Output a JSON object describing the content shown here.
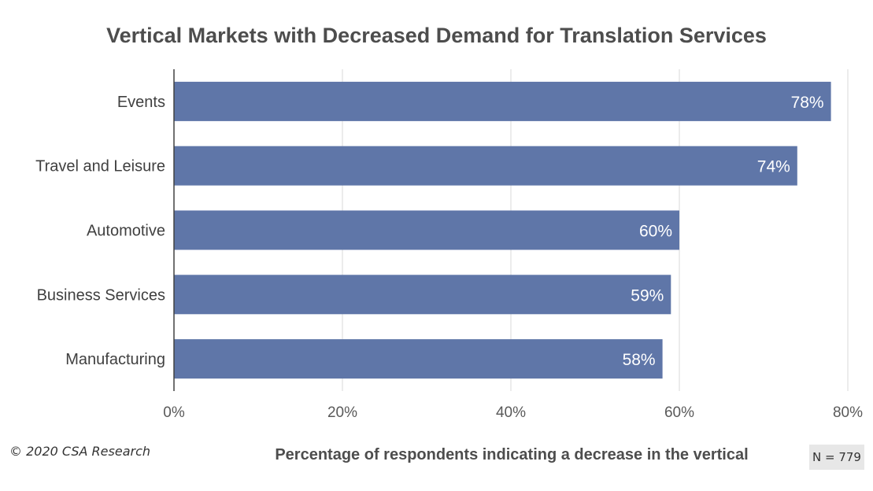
{
  "chart_data": {
    "type": "bar",
    "orientation": "horizontal",
    "title": "Vertical Markets with Decreased Demand for Translation Services",
    "xlabel": "Percentage of respondents indicating a decrease in the vertical",
    "ylabel": "",
    "categories": [
      "Events",
      "Travel and Leisure",
      "Automotive",
      "Business Services",
      "Manufacturing"
    ],
    "values": [
      78,
      74,
      60,
      59,
      58
    ],
    "data_labels": [
      "78%",
      "74%",
      "60%",
      "59%",
      "58%"
    ],
    "xlim": [
      0,
      80
    ],
    "x_ticks": [
      "0%",
      "20%",
      "40%",
      "60%",
      "80%"
    ],
    "grid": "vertical",
    "bar_color": "#5f76a8"
  },
  "footer": {
    "copyright": "© 2020 CSA Research",
    "sample_size": "N = 779"
  }
}
